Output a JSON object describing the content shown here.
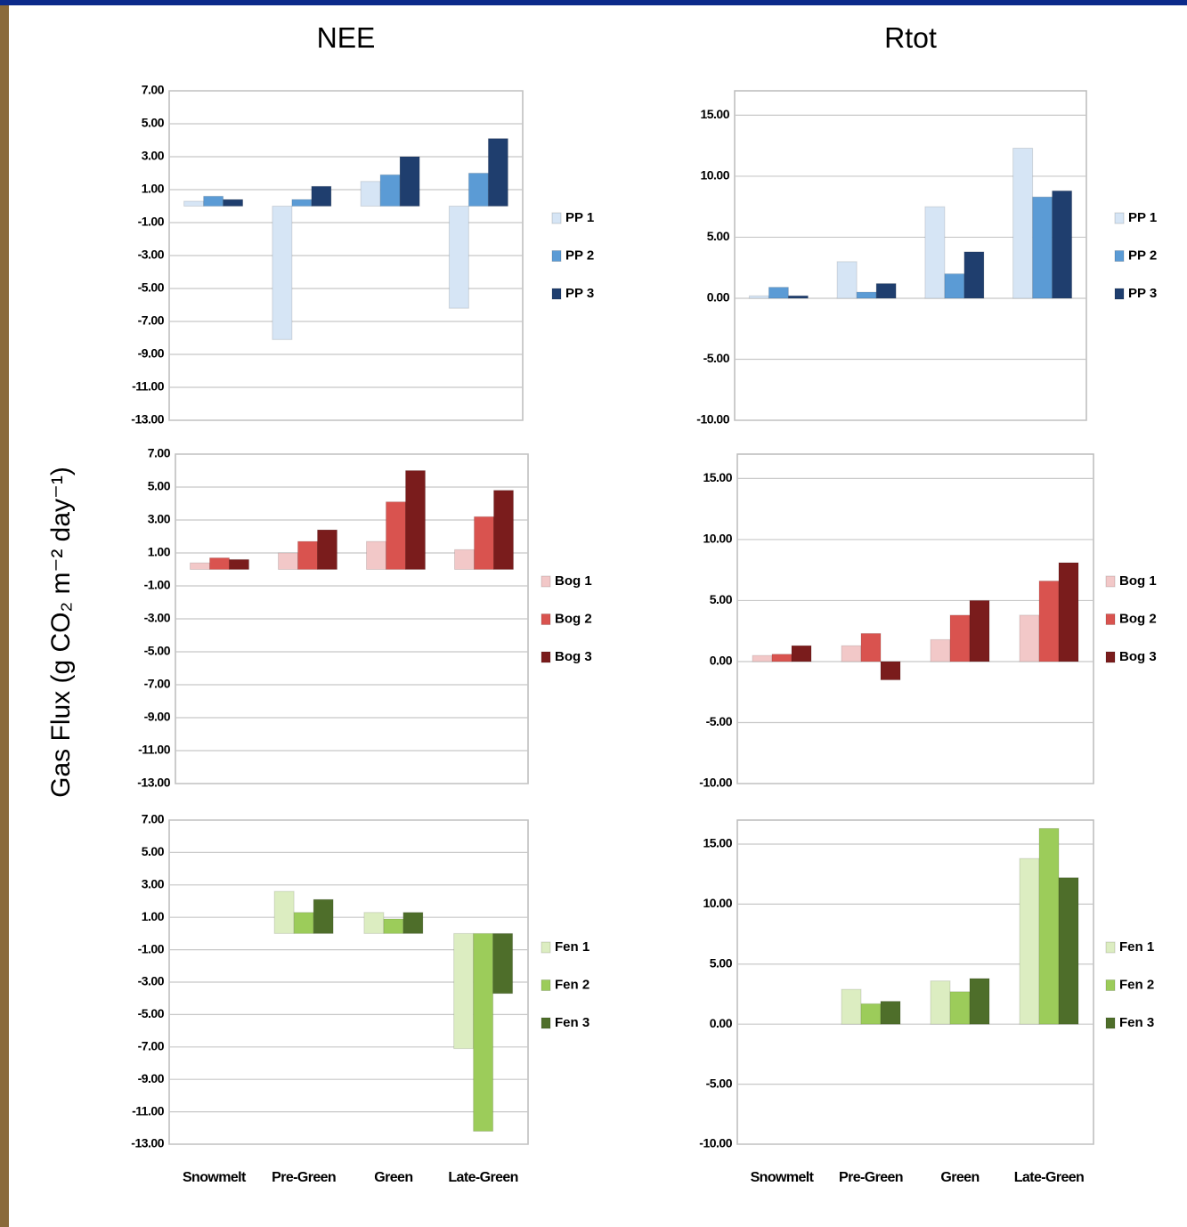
{
  "y_axis_label": "Gas Flux (g CO₂ m⁻² day⁻¹)",
  "categories": [
    "Snowmelt",
    "Pre-Green",
    "Green",
    "Late-Green"
  ],
  "chart_data": [
    {
      "type": "bar",
      "title": "NEE",
      "grid": true,
      "ylim": [
        -13,
        7
      ],
      "yticks": [
        {
          "value": 7,
          "label": "7.00"
        },
        {
          "value": 5,
          "label": "5.00"
        },
        {
          "value": 3,
          "label": "3.00"
        },
        {
          "value": 1,
          "label": "1.00"
        },
        {
          "value": -1,
          "label": "-1.00"
        },
        {
          "value": -3,
          "label": "-3.00"
        },
        {
          "value": -5,
          "label": "-5.00"
        },
        {
          "value": -7,
          "label": "-7.00"
        },
        {
          "value": -9,
          "label": "-9.00"
        },
        {
          "value": -11,
          "label": "-11.00"
        },
        {
          "value": -13,
          "label": "-13.00"
        }
      ],
      "series": [
        {
          "name": "PP 1",
          "color": "#d6e5f5",
          "values": [
            0.3,
            -8.1,
            1.5,
            -6.2
          ]
        },
        {
          "name": "PP 2",
          "color": "#5b9bd5",
          "values": [
            0.6,
            0.4,
            1.9,
            2.0
          ]
        },
        {
          "name": "PP 3",
          "color": "#1f3e6e",
          "values": [
            0.4,
            1.2,
            3.0,
            4.1
          ]
        }
      ]
    },
    {
      "type": "bar",
      "title": "Rtot",
      "grid": true,
      "ylim": [
        -10,
        17
      ],
      "yticks": [
        {
          "value": 15,
          "label": "15.00"
        },
        {
          "value": 10,
          "label": "10.00"
        },
        {
          "value": 5,
          "label": "5.00"
        },
        {
          "value": 0,
          "label": "0.00"
        },
        {
          "value": -5,
          "label": "-5.00"
        },
        {
          "value": -10,
          "label": "-10.00"
        }
      ],
      "series": [
        {
          "name": "PP 1",
          "color": "#d6e5f5",
          "values": [
            0.2,
            3.0,
            7.5,
            12.3
          ]
        },
        {
          "name": "PP 2",
          "color": "#5b9bd5",
          "values": [
            0.9,
            0.5,
            2.0,
            8.3
          ]
        },
        {
          "name": "PP 3",
          "color": "#1f3e6e",
          "values": [
            0.2,
            1.2,
            3.8,
            8.8
          ]
        }
      ]
    },
    {
      "type": "bar",
      "grid": true,
      "ylim": [
        -13,
        7
      ],
      "yticks": [
        {
          "value": 7,
          "label": "7.00"
        },
        {
          "value": 5,
          "label": "5.00"
        },
        {
          "value": 3,
          "label": "3.00"
        },
        {
          "value": 1,
          "label": "1.00"
        },
        {
          "value": -1,
          "label": "-1.00"
        },
        {
          "value": -3,
          "label": "-3.00"
        },
        {
          "value": -5,
          "label": "-5.00"
        },
        {
          "value": -7,
          "label": "-7.00"
        },
        {
          "value": -9,
          "label": "-9.00"
        },
        {
          "value": -11,
          "label": "-11.00"
        },
        {
          "value": -13,
          "label": "-13.00"
        }
      ],
      "series": [
        {
          "name": "Bog 1",
          "color": "#f2c8c8",
          "values": [
            0.4,
            1.0,
            1.7,
            1.2
          ]
        },
        {
          "name": "Bog 2",
          "color": "#d9534f",
          "values": [
            0.7,
            1.7,
            4.1,
            3.2
          ]
        },
        {
          "name": "Bog 3",
          "color": "#7a1c1c",
          "values": [
            0.6,
            2.4,
            6.0,
            4.8
          ]
        }
      ]
    },
    {
      "type": "bar",
      "grid": true,
      "ylim": [
        -10,
        17
      ],
      "yticks": [
        {
          "value": 15,
          "label": "15.00"
        },
        {
          "value": 10,
          "label": "10.00"
        },
        {
          "value": 5,
          "label": "5.00"
        },
        {
          "value": 0,
          "label": "0.00"
        },
        {
          "value": -5,
          "label": "-5.00"
        },
        {
          "value": -10,
          "label": "-10.00"
        }
      ],
      "series": [
        {
          "name": "Bog 1",
          "color": "#f2c8c8",
          "values": [
            0.5,
            1.3,
            1.8,
            3.8
          ]
        },
        {
          "name": "Bog 2",
          "color": "#d9534f",
          "values": [
            0.6,
            2.3,
            3.8,
            6.6
          ]
        },
        {
          "name": "Bog 3",
          "color": "#7a1c1c",
          "values": [
            1.3,
            -1.5,
            5.0,
            8.1
          ]
        }
      ]
    },
    {
      "type": "bar",
      "grid": true,
      "ylim": [
        -13,
        7
      ],
      "yticks": [
        {
          "value": 7,
          "label": "7.00"
        },
        {
          "value": 5,
          "label": "5.00"
        },
        {
          "value": 3,
          "label": "3.00"
        },
        {
          "value": 1,
          "label": "1.00"
        },
        {
          "value": -1,
          "label": "-1.00"
        },
        {
          "value": -3,
          "label": "-3.00"
        },
        {
          "value": -5,
          "label": "-5.00"
        },
        {
          "value": -7,
          "label": "-7.00"
        },
        {
          "value": -9,
          "label": "-9.00"
        },
        {
          "value": -11,
          "label": "-11.00"
        },
        {
          "value": -13,
          "label": "-13.00"
        }
      ],
      "series": [
        {
          "name": "Fen 1",
          "color": "#dcedc1",
          "values": [
            null,
            2.6,
            1.3,
            -7.1
          ]
        },
        {
          "name": "Fen 2",
          "color": "#9ccc5a",
          "values": [
            null,
            1.3,
            0.9,
            -12.2
          ]
        },
        {
          "name": "Fen 3",
          "color": "#4e6e2a",
          "values": [
            null,
            2.1,
            1.3,
            -3.7
          ]
        }
      ]
    },
    {
      "type": "bar",
      "grid": true,
      "ylim": [
        -10,
        17
      ],
      "yticks": [
        {
          "value": 15,
          "label": "15.00"
        },
        {
          "value": 10,
          "label": "10.00"
        },
        {
          "value": 5,
          "label": "5.00"
        },
        {
          "value": 0,
          "label": "0.00"
        },
        {
          "value": -5,
          "label": "-5.00"
        },
        {
          "value": -10,
          "label": "-10.00"
        }
      ],
      "series": [
        {
          "name": "Fen 1",
          "color": "#dcedc1",
          "values": [
            null,
            2.9,
            3.6,
            13.8
          ]
        },
        {
          "name": "Fen 2",
          "color": "#9ccc5a",
          "values": [
            null,
            1.7,
            2.7,
            16.3
          ]
        },
        {
          "name": "Fen 3",
          "color": "#4e6e2a",
          "values": [
            null,
            1.9,
            3.8,
            12.2
          ]
        }
      ]
    }
  ]
}
